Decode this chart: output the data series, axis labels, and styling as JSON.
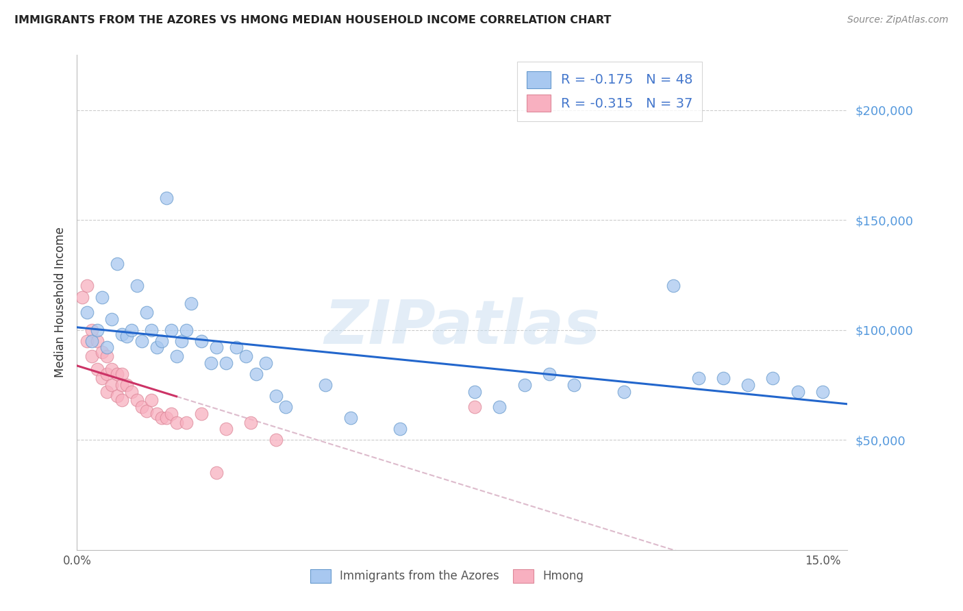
{
  "title": "IMMIGRANTS FROM THE AZORES VS HMONG MEDIAN HOUSEHOLD INCOME CORRELATION CHART",
  "source_text": "Source: ZipAtlas.com",
  "ylabel": "Median Household Income",
  "watermark": "ZIPatlas",
  "legend1_label": "Immigrants from the Azores",
  "legend2_label": "Hmong",
  "R1": -0.175,
  "N1": 48,
  "R2": -0.315,
  "N2": 37,
  "color_blue": "#a8c8f0",
  "color_pink": "#f8b0c0",
  "color_blue_edge": "#6699cc",
  "color_pink_edge": "#dd8899",
  "color_trendline_blue": "#2266cc",
  "color_trendline_pink": "#cc3366",
  "color_trendline_ext": "#ddbbcc",
  "color_legend_text": "#4477cc",
  "ytick_labels": [
    "$50,000",
    "$100,000",
    "$150,000",
    "$200,000"
  ],
  "ytick_values": [
    50000,
    100000,
    150000,
    200000
  ],
  "ylim": [
    0,
    225000
  ],
  "xlim": [
    0.0,
    0.155
  ],
  "azores_x": [
    0.002,
    0.003,
    0.004,
    0.005,
    0.006,
    0.007,
    0.008,
    0.009,
    0.01,
    0.011,
    0.012,
    0.013,
    0.014,
    0.015,
    0.016,
    0.017,
    0.018,
    0.019,
    0.02,
    0.021,
    0.022,
    0.023,
    0.025,
    0.027,
    0.028,
    0.03,
    0.032,
    0.034,
    0.036,
    0.038,
    0.04,
    0.042,
    0.05,
    0.055,
    0.065,
    0.08,
    0.085,
    0.09,
    0.095,
    0.1,
    0.11,
    0.12,
    0.125,
    0.13,
    0.135,
    0.14,
    0.145,
    0.15
  ],
  "azores_y": [
    108000,
    95000,
    100000,
    115000,
    92000,
    105000,
    130000,
    98000,
    97000,
    100000,
    120000,
    95000,
    108000,
    100000,
    92000,
    95000,
    160000,
    100000,
    88000,
    95000,
    100000,
    112000,
    95000,
    85000,
    92000,
    85000,
    92000,
    88000,
    80000,
    85000,
    70000,
    65000,
    75000,
    60000,
    55000,
    72000,
    65000,
    75000,
    80000,
    75000,
    72000,
    120000,
    78000,
    78000,
    75000,
    78000,
    72000,
    72000
  ],
  "hmong_x": [
    0.001,
    0.002,
    0.002,
    0.003,
    0.003,
    0.004,
    0.004,
    0.005,
    0.005,
    0.006,
    0.006,
    0.006,
    0.007,
    0.007,
    0.008,
    0.008,
    0.009,
    0.009,
    0.009,
    0.01,
    0.011,
    0.012,
    0.013,
    0.014,
    0.015,
    0.016,
    0.017,
    0.018,
    0.019,
    0.02,
    0.022,
    0.025,
    0.028,
    0.03,
    0.035,
    0.04,
    0.08
  ],
  "hmong_y": [
    115000,
    120000,
    95000,
    100000,
    88000,
    95000,
    82000,
    90000,
    78000,
    88000,
    80000,
    72000,
    82000,
    75000,
    80000,
    70000,
    80000,
    75000,
    68000,
    75000,
    72000,
    68000,
    65000,
    63000,
    68000,
    62000,
    60000,
    60000,
    62000,
    58000,
    58000,
    62000,
    35000,
    55000,
    58000,
    50000,
    65000
  ]
}
